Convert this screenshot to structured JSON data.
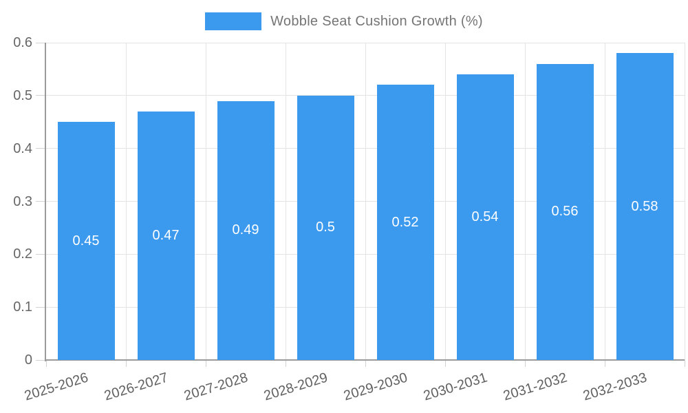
{
  "chart_data": {
    "type": "bar",
    "title": "Wobble Seat Cushion Growth (%)",
    "series_name": "Wobble Seat Cushion Growth (%)",
    "legend_position": "top",
    "categories": [
      "2025-2026",
      "2026-2027",
      "2027-2028",
      "2028-2029",
      "2029-2030",
      "2030-2031",
      "2031-2032",
      "2032-2033"
    ],
    "values": [
      0.45,
      0.47,
      0.49,
      0.5,
      0.52,
      0.54,
      0.56,
      0.58
    ],
    "value_labels": [
      "0.45",
      "0.47",
      "0.49",
      "0.5",
      "0.52",
      "0.54",
      "0.56",
      "0.58"
    ],
    "xlabel": "",
    "ylabel": "",
    "ylim": [
      0,
      0.6
    ],
    "y_ticks": [
      "0",
      "0.1",
      "0.2",
      "0.3",
      "0.4",
      "0.5",
      "0.6"
    ],
    "grid": true,
    "colors": {
      "bar": "#3b99ee",
      "bar_label": "#ffffff",
      "axis_text": "#666666",
      "x_axis_text": "#616161",
      "legend_text": "#757575",
      "grid_line": "#e4e4e4",
      "tick_line": "#d2d2d2",
      "axis_line": "#9a9a9a",
      "background": "#ffffff"
    }
  }
}
